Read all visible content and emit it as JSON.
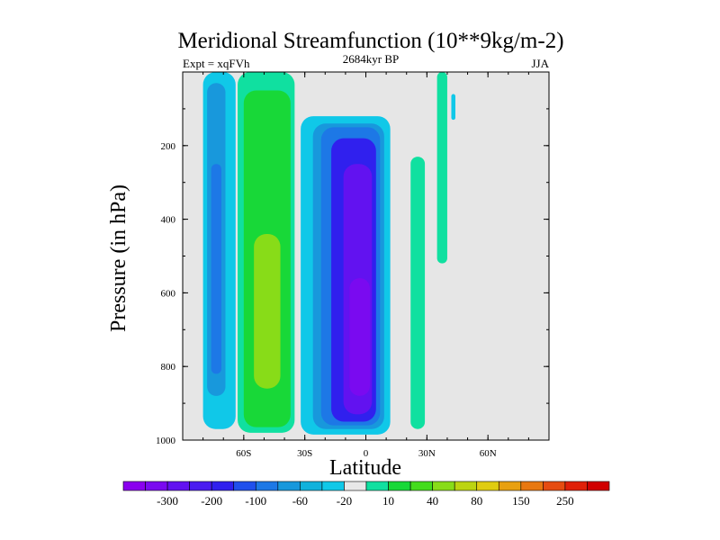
{
  "chart_data": {
    "type": "heatmap",
    "title": "Meridional Streamfunction (10**9kg/m-2)",
    "left_string": "Expt = xqFVh",
    "center_string": "2684kyr BP",
    "right_string": "JJA",
    "xlabel": "Latitude",
    "ylabel": "Pressure (in hPa)",
    "xlim": [
      -90,
      90
    ],
    "ylim": [
      1000,
      0
    ],
    "x_ticks": [
      {
        "value": -60,
        "label": "60S"
      },
      {
        "value": -30,
        "label": "30S"
      },
      {
        "value": 0,
        "label": "0"
      },
      {
        "value": 30,
        "label": "30N"
      },
      {
        "value": 60,
        "label": "60N"
      }
    ],
    "y_ticks": [
      {
        "value": 200,
        "label": "200"
      },
      {
        "value": 400,
        "label": "400"
      },
      {
        "value": 600,
        "label": "600"
      },
      {
        "value": 800,
        "label": "800"
      },
      {
        "value": 1000,
        "label": "1000"
      }
    ],
    "missing_color": "#e6e6e6",
    "colorbar": {
      "colors": [
        "#8a00ee",
        "#7a0af0",
        "#6212f0",
        "#4a1cf0",
        "#3020ee",
        "#2050ec",
        "#1d78e6",
        "#1898dc",
        "#10b2dc",
        "#10c8e8",
        "#e8e8e8",
        "#10e0a0",
        "#18d838",
        "#44dc1c",
        "#88dc18",
        "#bcd410",
        "#e0cc10",
        "#e8a010",
        "#e87810",
        "#e64c10",
        "#e02008",
        "#d00000"
      ],
      "labels": [
        "-300",
        "-200",
        "-100",
        "-60",
        "-20",
        "10",
        "40",
        "80",
        "150",
        "250"
      ],
      "label_after_box": [
        1,
        3,
        5,
        7,
        9,
        11,
        13,
        15,
        17,
        19
      ]
    },
    "features": [
      {
        "name": "southern-polar-cell",
        "level": "-20",
        "color": "#10c8e8",
        "lat": [
          -80,
          -64
        ],
        "pressure": [
          0,
          970
        ]
      },
      {
        "name": "southern-polar-cell-core",
        "level": "-60",
        "color": "#1898dc",
        "lat": [
          -78,
          -69
        ],
        "pressure": [
          30,
          880
        ]
      },
      {
        "name": "southern-polar-cell-inner",
        "level": "-100",
        "color": "#1d78e6",
        "lat": [
          -76,
          -71
        ],
        "pressure": [
          250,
          820
        ]
      },
      {
        "name": "ferrel-cell",
        "level": "10",
        "color": "#10e0a0",
        "lat": [
          -63,
          -35
        ],
        "pressure": [
          0,
          980
        ]
      },
      {
        "name": "ferrel-cell-mid",
        "level": "40",
        "color": "#18d838",
        "lat": [
          -60,
          -37
        ],
        "pressure": [
          50,
          965
        ]
      },
      {
        "name": "ferrel-cell-core",
        "level": "80",
        "color": "#88dc18",
        "lat": [
          -55,
          -42
        ],
        "pressure": [
          440,
          860
        ]
      },
      {
        "name": "hadley-cell-outer",
        "level": "-20",
        "color": "#10c8e8",
        "lat": [
          -32,
          12
        ],
        "pressure": [
          120,
          985
        ]
      },
      {
        "name": "hadley-cell-60",
        "level": "-60",
        "color": "#1898dc",
        "lat": [
          -26,
          9
        ],
        "pressure": [
          140,
          970
        ]
      },
      {
        "name": "hadley-cell-100",
        "level": "-100",
        "color": "#1d78e6",
        "lat": [
          -22,
          7
        ],
        "pressure": [
          150,
          960
        ]
      },
      {
        "name": "hadley-cell-200",
        "level": "-200",
        "color": "#3020ee",
        "lat": [
          -17,
          5
        ],
        "pressure": [
          180,
          950
        ]
      },
      {
        "name": "hadley-cell-300",
        "level": "-300",
        "color": "#6212f0",
        "lat": [
          -11,
          3
        ],
        "pressure": [
          250,
          930
        ]
      },
      {
        "name": "hadley-cell-core",
        "level": "-300",
        "color": "#7a0af0",
        "lat": [
          -8,
          2
        ],
        "pressure": [
          560,
          880
        ]
      },
      {
        "name": "northern-cell",
        "level": "10",
        "color": "#10e0a0",
        "lat": [
          22,
          29
        ],
        "pressure": [
          230,
          970
        ]
      },
      {
        "name": "northern-strip",
        "level": "10",
        "color": "#10e0a0",
        "lat": [
          35,
          40
        ],
        "pressure": [
          0,
          520
        ]
      },
      {
        "name": "northern-strip-small",
        "level": "-20",
        "color": "#10c8e8",
        "lat": [
          42,
          44
        ],
        "pressure": [
          60,
          130
        ]
      }
    ]
  }
}
